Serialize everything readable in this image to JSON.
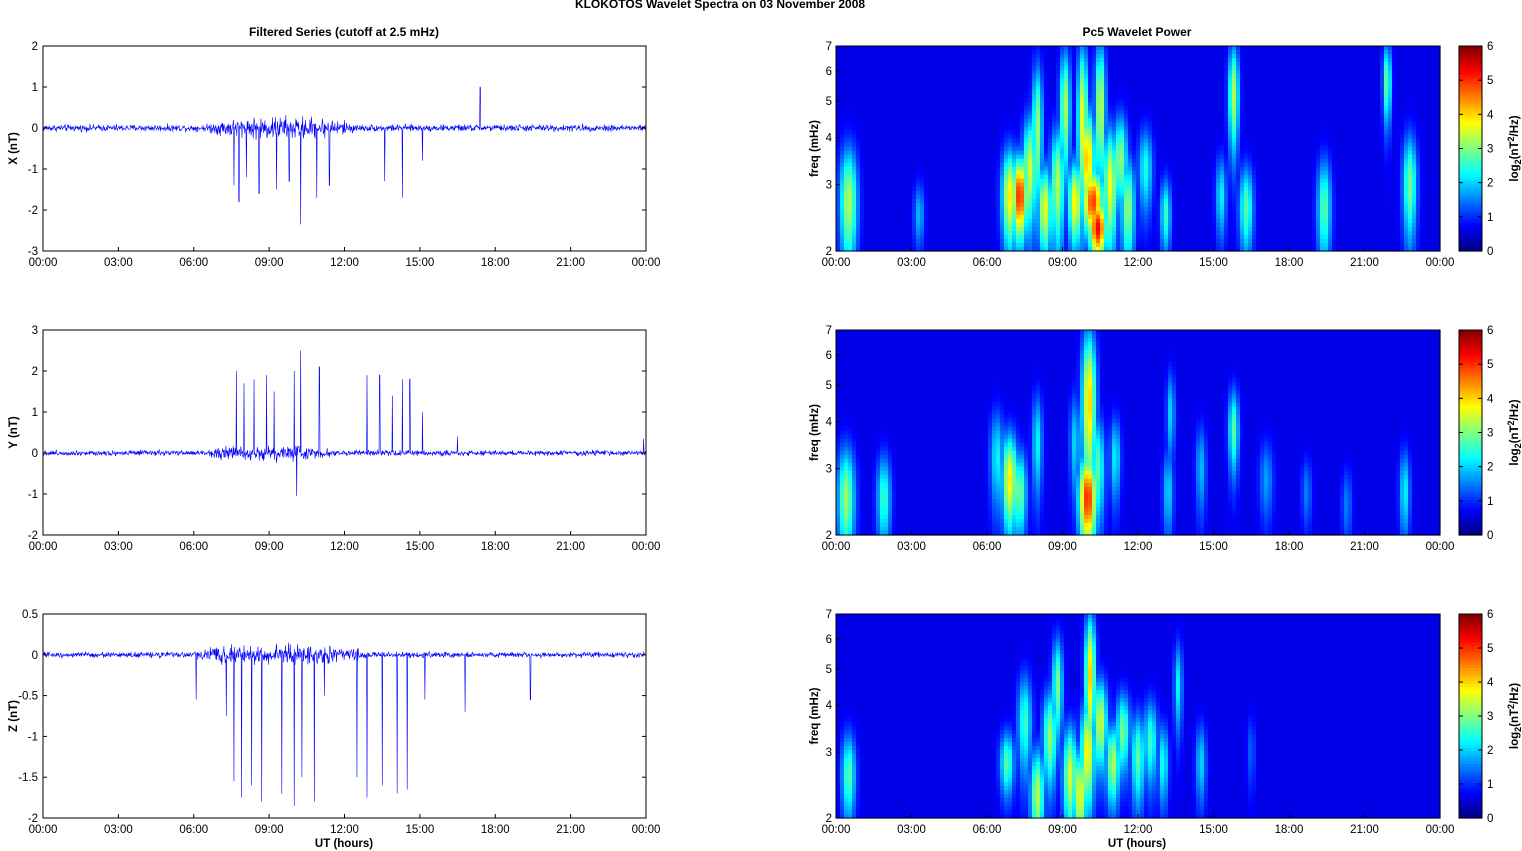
{
  "figure_title": "KLOKOTOS Wavelet Spectra on 03 November  2008",
  "left_column_title": "Filtered Series (cutoff at 2.5 mHz)",
  "right_column_title": "Pc5 Wavelet Power",
  "x_axis_label": "UT (hours)",
  "time_ticks": [
    "00:00",
    "03:00",
    "06:00",
    "09:00",
    "12:00",
    "15:00",
    "18:00",
    "21:00",
    "00:00"
  ],
  "colors": {
    "trace": "#0000ff",
    "spectrum_background": "#00008f"
  },
  "chart_data": [
    {
      "type": "line",
      "ylabel": "X (nT)",
      "xlim": [
        0,
        24
      ],
      "ylim": [
        -3,
        2
      ],
      "yticks": [
        2,
        1,
        0,
        -1,
        -2,
        -3
      ],
      "ytick_labels": [
        "2",
        "1",
        "0",
        "-1",
        "-2",
        "-3"
      ],
      "noise_sd_quiet": 0.05,
      "noise_sd_active": 0.17,
      "active_window": [
        6.5,
        12.5
      ],
      "peaks": [
        [
          7.6,
          -1.4
        ],
        [
          7.8,
          -1.8
        ],
        [
          8.1,
          -1.2
        ],
        [
          8.6,
          -1.6
        ],
        [
          9.3,
          -1.5
        ],
        [
          9.8,
          -1.3
        ],
        [
          10.25,
          -2.35
        ],
        [
          10.9,
          -1.7
        ],
        [
          11.4,
          -1.4
        ],
        [
          13.6,
          -1.3
        ],
        [
          14.3,
          -1.7
        ],
        [
          15.1,
          -0.8
        ],
        [
          17.4,
          1.0
        ]
      ]
    },
    {
      "type": "line",
      "ylabel": "Y (nT)",
      "xlim": [
        0,
        24
      ],
      "ylim": [
        -2,
        3
      ],
      "yticks": [
        3,
        2,
        1,
        0,
        -1,
        -2
      ],
      "ytick_labels": [
        "3",
        "2",
        "1",
        "0",
        "-1",
        "-2"
      ],
      "noise_sd_quiet": 0.04,
      "noise_sd_active": 0.12,
      "active_window": [
        6.5,
        11.5
      ],
      "peaks": [
        [
          7.7,
          2.0
        ],
        [
          8.0,
          1.7
        ],
        [
          8.4,
          1.8
        ],
        [
          8.9,
          1.9
        ],
        [
          9.2,
          1.5
        ],
        [
          10.0,
          2.0
        ],
        [
          10.25,
          2.5
        ],
        [
          10.1,
          -1.05
        ],
        [
          11.0,
          2.1
        ],
        [
          12.9,
          1.9
        ],
        [
          13.4,
          1.9
        ],
        [
          13.9,
          1.4
        ],
        [
          14.3,
          1.8
        ],
        [
          14.6,
          1.8
        ],
        [
          15.1,
          1.0
        ],
        [
          16.5,
          0.4
        ],
        [
          23.9,
          0.35
        ]
      ]
    },
    {
      "type": "line",
      "ylabel": "Z (nT)",
      "xlim": [
        0,
        24
      ],
      "ylim": [
        -2,
        0.5
      ],
      "yticks": [
        0.5,
        0,
        -0.5,
        -1,
        -1.5,
        -2
      ],
      "ytick_labels": [
        "0.5",
        "0",
        "-0.5",
        "-1",
        "-1.5",
        "-2"
      ],
      "noise_sd_quiet": 0.02,
      "noise_sd_active": 0.08,
      "active_window": [
        6.0,
        13.0
      ],
      "peaks": [
        [
          6.1,
          -0.55
        ],
        [
          7.3,
          -0.75
        ],
        [
          7.6,
          -1.55
        ],
        [
          7.9,
          -1.75
        ],
        [
          8.3,
          -1.6
        ],
        [
          8.7,
          -1.8
        ],
        [
          9.5,
          -1.7
        ],
        [
          10.0,
          -1.85
        ],
        [
          10.3,
          -1.5
        ],
        [
          10.8,
          -1.8
        ],
        [
          11.2,
          -0.5
        ],
        [
          12.5,
          -1.5
        ],
        [
          12.9,
          -1.75
        ],
        [
          13.5,
          -1.6
        ],
        [
          14.1,
          -1.7
        ],
        [
          14.5,
          -1.65
        ],
        [
          15.2,
          -0.55
        ],
        [
          16.8,
          -0.7
        ],
        [
          19.4,
          -0.55
        ]
      ]
    },
    {
      "type": "heatmap",
      "ylabel": "freq (mHz)",
      "xlim": [
        0,
        24
      ],
      "ylim": [
        2,
        7
      ],
      "yscale": "log",
      "yticks": [
        7,
        6,
        5,
        4,
        3,
        2
      ],
      "ytick_labels": [
        "7",
        "6",
        "5",
        "4",
        "3",
        "2"
      ],
      "colorbar": {
        "label": "log2(nT²/Hz)",
        "ticks": [
          "6",
          "5",
          "4",
          "3",
          "2",
          "1",
          "0"
        ],
        "range": [
          0,
          6
        ],
        "colormap": "jet"
      },
      "blobs": [
        [
          0.5,
          2.7,
          0.25,
          0.7,
          3.0
        ],
        [
          3.3,
          2.5,
          0.15,
          0.35,
          1.4
        ],
        [
          6.9,
          2.8,
          0.22,
          0.6,
          3.6
        ],
        [
          7.3,
          2.8,
          0.22,
          0.5,
          5.0
        ],
        [
          7.7,
          3.3,
          0.2,
          0.8,
          3.2
        ],
        [
          8.0,
          4.2,
          0.15,
          1.3,
          2.8
        ],
        [
          8.3,
          2.6,
          0.2,
          0.5,
          3.4
        ],
        [
          8.8,
          3.0,
          0.2,
          0.8,
          3.0
        ],
        [
          9.1,
          4.8,
          0.15,
          1.3,
          3.0
        ],
        [
          9.5,
          2.7,
          0.2,
          0.5,
          3.6
        ],
        [
          9.8,
          4.5,
          0.15,
          1.6,
          3.4
        ],
        [
          10.0,
          3.5,
          0.2,
          0.8,
          4.0
        ],
        [
          10.2,
          2.7,
          0.3,
          0.4,
          4.8
        ],
        [
          10.4,
          2.3,
          0.25,
          0.3,
          5.2
        ],
        [
          10.5,
          4.8,
          0.15,
          1.5,
          3.2
        ],
        [
          10.9,
          3.0,
          0.2,
          0.8,
          3.4
        ],
        [
          11.3,
          3.5,
          0.2,
          0.7,
          2.8
        ],
        [
          11.6,
          2.6,
          0.2,
          0.6,
          2.8
        ],
        [
          12.3,
          3.3,
          0.2,
          0.6,
          2.0
        ],
        [
          13.1,
          2.5,
          0.15,
          0.4,
          2.2
        ],
        [
          15.3,
          2.8,
          0.15,
          0.5,
          1.8
        ],
        [
          15.8,
          5.2,
          0.15,
          1.2,
          3.0
        ],
        [
          16.3,
          2.6,
          0.2,
          0.5,
          2.4
        ],
        [
          19.4,
          2.6,
          0.2,
          0.6,
          2.4
        ],
        [
          21.9,
          5.6,
          0.12,
          1.0,
          2.6
        ],
        [
          22.8,
          3.0,
          0.2,
          0.7,
          2.6
        ]
      ]
    },
    {
      "type": "heatmap",
      "ylabel": "freq (mHz)",
      "xlim": [
        0,
        24
      ],
      "ylim": [
        2,
        7
      ],
      "yscale": "log",
      "yticks": [
        7,
        6,
        5,
        4,
        3,
        2
      ],
      "ytick_labels": [
        "7",
        "6",
        "5",
        "4",
        "3",
        "2"
      ],
      "colorbar": {
        "label": "log2(nT²/Hz)",
        "ticks": [
          "6",
          "5",
          "4",
          "3",
          "2",
          "1",
          "0"
        ],
        "range": [
          0,
          6
        ],
        "colormap": "jet"
      },
      "blobs": [
        [
          0.4,
          2.5,
          0.25,
          0.6,
          2.8
        ],
        [
          1.9,
          2.5,
          0.2,
          0.5,
          2.2
        ],
        [
          6.4,
          3.2,
          0.2,
          0.7,
          1.8
        ],
        [
          6.9,
          2.8,
          0.22,
          0.6,
          3.6
        ],
        [
          7.3,
          2.6,
          0.2,
          0.5,
          2.6
        ],
        [
          8.0,
          3.5,
          0.15,
          0.8,
          1.8
        ],
        [
          9.5,
          3.5,
          0.15,
          0.8,
          1.6
        ],
        [
          10.0,
          2.5,
          0.25,
          0.5,
          5.0
        ],
        [
          10.05,
          4.5,
          0.2,
          1.6,
          3.8
        ],
        [
          10.4,
          3.0,
          0.2,
          0.7,
          2.4
        ],
        [
          11.1,
          3.2,
          0.15,
          0.6,
          1.8
        ],
        [
          13.2,
          2.6,
          0.15,
          0.5,
          1.6
        ],
        [
          13.3,
          4.2,
          0.12,
          0.8,
          1.6
        ],
        [
          14.5,
          3.0,
          0.15,
          0.6,
          1.4
        ],
        [
          15.8,
          3.8,
          0.15,
          0.7,
          2.4
        ],
        [
          17.1,
          2.8,
          0.2,
          0.5,
          1.2
        ],
        [
          18.7,
          2.6,
          0.15,
          0.4,
          1.0
        ],
        [
          20.3,
          2.4,
          0.15,
          0.4,
          1.0
        ],
        [
          22.6,
          2.6,
          0.15,
          0.5,
          1.8
        ]
      ]
    },
    {
      "type": "heatmap",
      "ylabel": "freq (mHz)",
      "xlim": [
        0,
        24
      ],
      "ylim": [
        2,
        7
      ],
      "yscale": "log",
      "yticks": [
        7,
        6,
        5,
        4,
        3,
        2
      ],
      "ytick_labels": [
        "7",
        "6",
        "5",
        "4",
        "3",
        "2"
      ],
      "colorbar": {
        "label": "log2(nT²/Hz)",
        "ticks": [
          "6",
          "5",
          "4",
          "3",
          "2",
          "1",
          "0"
        ],
        "range": [
          0,
          6
        ],
        "colormap": "jet"
      },
      "blobs": [
        [
          0.5,
          2.6,
          0.2,
          0.5,
          2.4
        ],
        [
          6.8,
          2.8,
          0.2,
          0.4,
          2.4
        ],
        [
          7.5,
          3.6,
          0.2,
          0.8,
          2.2
        ],
        [
          8.0,
          2.3,
          0.2,
          0.5,
          3.0
        ],
        [
          8.5,
          3.3,
          0.2,
          0.7,
          2.8
        ],
        [
          8.8,
          4.5,
          0.15,
          1.0,
          2.6
        ],
        [
          9.3,
          2.6,
          0.2,
          0.6,
          3.2
        ],
        [
          9.7,
          2.3,
          0.2,
          0.5,
          3.4
        ],
        [
          10.0,
          3.0,
          0.2,
          0.7,
          3.6
        ],
        [
          10.1,
          4.8,
          0.15,
          1.4,
          3.8
        ],
        [
          10.5,
          3.6,
          0.2,
          0.7,
          3.2
        ],
        [
          11.0,
          2.8,
          0.2,
          0.5,
          3.0
        ],
        [
          11.4,
          3.4,
          0.2,
          0.6,
          2.6
        ],
        [
          12.0,
          2.9,
          0.2,
          0.6,
          2.4
        ],
        [
          12.5,
          3.2,
          0.2,
          0.6,
          2.2
        ],
        [
          13.0,
          2.8,
          0.15,
          0.5,
          2.0
        ],
        [
          13.6,
          4.5,
          0.12,
          0.9,
          1.8
        ],
        [
          14.5,
          2.8,
          0.15,
          0.5,
          1.6
        ],
        [
          16.5,
          3.0,
          0.12,
          0.5,
          0.8
        ]
      ]
    }
  ]
}
